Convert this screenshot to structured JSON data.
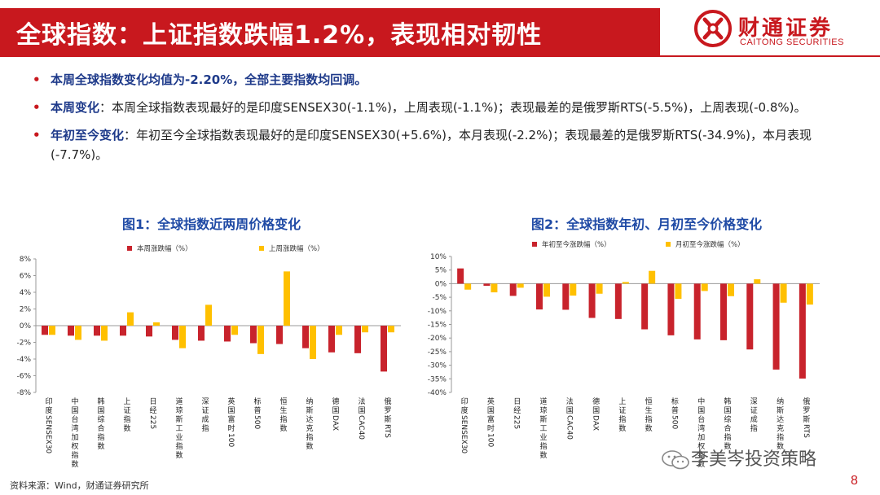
{
  "header": {
    "title": "全球指数：上证指数跌幅1.2%，表现相对韧性",
    "logo_cn": "财通证券",
    "logo_en": "CAITONG SECURITIES"
  },
  "bullets": {
    "b1": "本周全球指数变化均值为-2.20%，全部主要指数均回调。",
    "b2_lead": "本周变化",
    "b2_text": "：本周全球指数表现最好的是印度SENSEX30(-1.1%)，上周表现(-1.1%)；表现最差的是俄罗斯RTS(-5.5%)，上周表现(-0.8%)。",
    "b3_lead": "年初至今变化",
    "b3_text": "：年初至今全球指数表现最好的是印度SENSEX30(+5.6%)，本月表现(-2.2%)；表现最差的是俄罗斯RTS(-34.9%)，本月表现(-7.7%)。",
    "bullet_symbol": "•"
  },
  "figures": {
    "fig1_title": "图1：全球指数近两周价格变化",
    "fig2_title": "图2：全球指数年初、月初至今价格变化"
  },
  "footer": {
    "source": "资料来源：Wind，财通证券研究所",
    "watermark": "李美岑投资策略",
    "page": "8"
  },
  "colors": {
    "brand_red": "#c8181e",
    "series_red": "#c8232c",
    "series_yellow": "#ffc000",
    "title_blue": "#1f4aa5"
  },
  "chart_data": [
    {
      "type": "bar",
      "categories": [
        "印度SENSEX30",
        "中国台湾加权指数",
        "韩国综合指数",
        "上证指数",
        "日经225",
        "道琼斯工业指数",
        "深证成指",
        "英国富时100",
        "标普500",
        "恒生指数",
        "纳斯达克指数",
        "德国DAX",
        "法国CAC40",
        "俄罗斯RTS"
      ],
      "series": [
        {
          "name": "本周涨跌幅（%）",
          "values": [
            -1.1,
            -1.2,
            -1.2,
            -1.2,
            -1.3,
            -1.7,
            -1.8,
            -1.9,
            -2.1,
            -2.2,
            -2.7,
            -3.2,
            -3.3,
            -5.5
          ]
        },
        {
          "name": "上周涨跌幅（%）",
          "values": [
            -1.1,
            -1.7,
            -1.8,
            1.6,
            0.4,
            -2.7,
            2.5,
            -1.1,
            -3.4,
            6.5,
            -4.0,
            -1.1,
            -0.8,
            -0.8
          ]
        }
      ],
      "ylim": [
        -8,
        8
      ],
      "yticks": [
        "8%",
        "6%",
        "4%",
        "2%",
        "0%",
        "-2%",
        "-4%",
        "-6%",
        "-8%"
      ],
      "legend": "top"
    },
    {
      "type": "bar",
      "categories": [
        "印度SENSEX30",
        "英国富时100",
        "日经225",
        "道琼斯工业指数",
        "法国CAC40",
        "德国DAX",
        "上证指数",
        "恒生指数",
        "标普500",
        "中国台湾加权指数",
        "韩国综合指数",
        "深证成指",
        "纳斯达克指数",
        "俄罗斯RTS"
      ],
      "series": [
        {
          "name": "年初至今涨跌幅（%）",
          "values": [
            5.6,
            -0.8,
            -4.5,
            -9.5,
            -9.6,
            -12.6,
            -13.0,
            -16.8,
            -19.0,
            -20.5,
            -20.8,
            -24.2,
            -31.6,
            -34.9
          ]
        },
        {
          "name": "月初至今涨跌幅（%）",
          "values": [
            -2.2,
            -3.2,
            -1.5,
            -4.8,
            -4.4,
            -3.7,
            0.6,
            4.7,
            -5.6,
            -2.7,
            -4.6,
            1.6,
            -7.0,
            -7.7
          ]
        }
      ],
      "ylim": [
        -40,
        10
      ],
      "yticks": [
        "10%",
        "5%",
        "0%",
        "-5%",
        "-10%",
        "-15%",
        "-20%",
        "-25%",
        "-30%",
        "-35%",
        "-40%"
      ],
      "legend": "top"
    }
  ]
}
